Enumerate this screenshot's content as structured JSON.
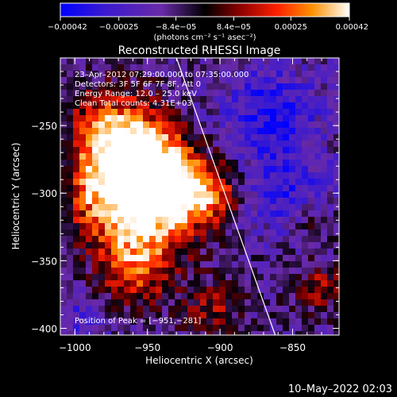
{
  "chart_data": {
    "type": "heatmap",
    "title": "Reconstructed RHESSI Image",
    "xlabel": "Heliocentric X (arcsec)",
    "ylabel": "Heliocentric Y (arcsec)",
    "xlim": [
      -1010,
      -818
    ],
    "ylim": [
      -405,
      -200
    ],
    "x_ticks": [
      {
        "value": -1000,
        "label": "−1000"
      },
      {
        "value": -950,
        "label": "−950"
      },
      {
        "value": -900,
        "label": "−900"
      },
      {
        "value": -850,
        "label": "−850"
      }
    ],
    "y_ticks": [
      {
        "value": -250,
        "label": "−250"
      },
      {
        "value": -300,
        "label": "−300"
      },
      {
        "value": -350,
        "label": "−350"
      },
      {
        "value": -400,
        "label": "−400"
      }
    ],
    "colorbar": {
      "min": -0.00042,
      "max": 0.00042,
      "ticks": [
        {
          "value": -0.00042,
          "label": "−0.00042"
        },
        {
          "value": -0.00025,
          "label": "−0.00025"
        },
        {
          "value": -8.4e-05,
          "label": "−8.4e−05"
        },
        {
          "value": 8.4e-05,
          "label": "8.4e−05"
        },
        {
          "value": 0.00025,
          "label": "0.00025"
        },
        {
          "value": 0.00042,
          "label": "0.00042"
        }
      ],
      "unit_label": "(photons cm⁻² s⁻¹ asec⁻²)"
    },
    "peak": [
      -951,
      -281
    ],
    "limb_line": [
      [
        -930,
        -200
      ],
      [
        -862,
        -405
      ]
    ],
    "annotations": [
      "23–Apr–2012 07:29:00.000 to 07:35:00.000",
      "Detectors: 3F 5F 6F 7F 8F, Att 0",
      "Energy Range: 12.0 – 25.0 keV",
      "Clean     Total counts: 4.31E+03"
    ],
    "peak_label": "Position of Peak = [−951,−281]",
    "timestamp": "10–May–2022 02:03",
    "colors": {
      "background": "#000000",
      "foreground": "#ffffff"
    }
  }
}
